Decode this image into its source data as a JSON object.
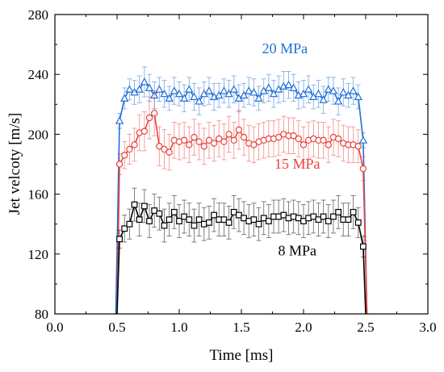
{
  "chart_data": {
    "type": "line",
    "xlabel": "Time [ms]",
    "ylabel": "Jet velcoty [m/s]",
    "xlim": [
      0.0,
      3.0
    ],
    "ylim": [
      80,
      280
    ],
    "xticks": [
      "0.0",
      "0.5",
      "1.0",
      "1.5",
      "2.0",
      "2.5",
      "3.0"
    ],
    "yticks": [
      "80",
      "120",
      "160",
      "200",
      "240",
      "280"
    ],
    "grid": false,
    "series": [
      {
        "name": "20 MPa",
        "color": "#1f6fd6",
        "marker": "triangle",
        "label_pos": [
          1.85,
          254
        ],
        "rise": [
          [
            0.49,
            80
          ]
        ],
        "fall": [
          [
            2.51,
            80
          ]
        ],
        "x": [
          0.52,
          0.56,
          0.6,
          0.64,
          0.68,
          0.72,
          0.76,
          0.8,
          0.84,
          0.88,
          0.92,
          0.96,
          1.0,
          1.04,
          1.08,
          1.12,
          1.16,
          1.2,
          1.24,
          1.28,
          1.32,
          1.36,
          1.4,
          1.44,
          1.48,
          1.52,
          1.56,
          1.6,
          1.64,
          1.68,
          1.72,
          1.76,
          1.8,
          1.84,
          1.88,
          1.92,
          1.96,
          2.0,
          2.04,
          2.08,
          2.12,
          2.16,
          2.2,
          2.24,
          2.28,
          2.32,
          2.36,
          2.4,
          2.44,
          2.48
        ],
        "y": [
          209,
          224,
          230,
          228,
          230,
          235,
          231,
          226,
          230,
          227,
          224,
          229,
          227,
          224,
          230,
          225,
          222,
          227,
          229,
          225,
          226,
          229,
          227,
          230,
          224,
          226,
          229,
          228,
          224,
          229,
          231,
          227,
          230,
          232,
          233,
          231,
          226,
          227,
          230,
          225,
          227,
          223,
          230,
          229,
          222,
          228,
          226,
          229,
          225,
          196
        ],
        "err": [
          5,
          7,
          7,
          8,
          9,
          10,
          9,
          9,
          8,
          9,
          8,
          9,
          8,
          9,
          8,
          9,
          9,
          8,
          9,
          9,
          8,
          8,
          9,
          9,
          9,
          8,
          9,
          9,
          8,
          8,
          9,
          9,
          9,
          10,
          9,
          9,
          9,
          9,
          9,
          8,
          9,
          9,
          8,
          9,
          9,
          9,
          8,
          9,
          8,
          5
        ]
      },
      {
        "name": "15 MPa",
        "color": "#e8423c",
        "marker": "circle",
        "label_pos": [
          1.95,
          177
        ],
        "rise": [
          [
            0.5,
            80
          ]
        ],
        "fall": [
          [
            2.51,
            80
          ]
        ],
        "x": [
          0.52,
          0.56,
          0.6,
          0.64,
          0.68,
          0.72,
          0.76,
          0.8,
          0.84,
          0.88,
          0.92,
          0.96,
          1.0,
          1.04,
          1.08,
          1.12,
          1.16,
          1.2,
          1.24,
          1.28,
          1.32,
          1.36,
          1.4,
          1.44,
          1.48,
          1.52,
          1.56,
          1.6,
          1.64,
          1.68,
          1.72,
          1.76,
          1.8,
          1.84,
          1.88,
          1.92,
          1.96,
          2.0,
          2.04,
          2.08,
          2.12,
          2.16,
          2.2,
          2.24,
          2.28,
          2.32,
          2.36,
          2.4,
          2.44,
          2.48
        ],
        "y": [
          180,
          186,
          190,
          193,
          201,
          202,
          211,
          214,
          192,
          190,
          188,
          196,
          195,
          196,
          193,
          198,
          195,
          192,
          196,
          194,
          197,
          195,
          200,
          196,
          203,
          198,
          194,
          193,
          195,
          196,
          197,
          197,
          198,
          200,
          199,
          199,
          197,
          193,
          196,
          197,
          196,
          196,
          193,
          198,
          197,
          194,
          193,
          193,
          192,
          177
        ],
        "err": [
          7,
          9,
          10,
          11,
          12,
          13,
          14,
          15,
          13,
          13,
          12,
          12,
          12,
          12,
          12,
          12,
          12,
          12,
          12,
          12,
          12,
          12,
          12,
          12,
          13,
          12,
          12,
          12,
          12,
          12,
          12,
          12,
          12,
          12,
          12,
          12,
          12,
          12,
          12,
          12,
          12,
          12,
          12,
          12,
          12,
          12,
          12,
          12,
          11,
          8
        ]
      },
      {
        "name": "8 MPa",
        "color": "#000000",
        "marker": "square",
        "label_pos": [
          1.95,
          119
        ],
        "rise": [
          [
            0.5,
            80
          ]
        ],
        "fall": [
          [
            2.5,
            80
          ]
        ],
        "x": [
          0.52,
          0.56,
          0.6,
          0.64,
          0.68,
          0.72,
          0.76,
          0.8,
          0.84,
          0.88,
          0.92,
          0.96,
          1.0,
          1.04,
          1.08,
          1.12,
          1.16,
          1.2,
          1.24,
          1.28,
          1.32,
          1.36,
          1.4,
          1.44,
          1.48,
          1.52,
          1.56,
          1.6,
          1.64,
          1.68,
          1.72,
          1.76,
          1.8,
          1.84,
          1.88,
          1.92,
          1.96,
          2.0,
          2.04,
          2.08,
          2.12,
          2.16,
          2.2,
          2.24,
          2.28,
          2.32,
          2.36,
          2.4,
          2.44,
          2.48
        ],
        "y": [
          130,
          137,
          140,
          153,
          143,
          152,
          142,
          149,
          147,
          139,
          143,
          148,
          142,
          145,
          143,
          139,
          143,
          140,
          141,
          146,
          143,
          143,
          141,
          148,
          146,
          144,
          142,
          143,
          140,
          144,
          142,
          145,
          145,
          146,
          144,
          145,
          144,
          142,
          144,
          145,
          143,
          145,
          142,
          145,
          148,
          143,
          143,
          148,
          141,
          125
        ],
        "err": [
          6,
          9,
          10,
          11,
          11,
          11,
          11,
          11,
          11,
          11,
          11,
          11,
          11,
          11,
          11,
          11,
          11,
          11,
          11,
          11,
          11,
          11,
          11,
          11,
          11,
          11,
          11,
          11,
          11,
          11,
          11,
          11,
          11,
          11,
          11,
          11,
          11,
          11,
          11,
          11,
          11,
          11,
          11,
          11,
          11,
          11,
          11,
          11,
          10,
          7
        ]
      }
    ]
  }
}
